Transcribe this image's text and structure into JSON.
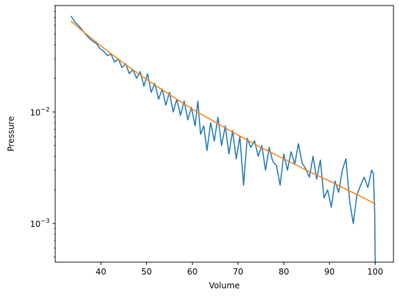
{
  "chart_data": {
    "type": "line",
    "title": "",
    "xlabel": "Volume",
    "ylabel": "Pressure",
    "xlim": [
      30,
      104
    ],
    "ylim": [
      0.00045,
      0.09
    ],
    "yscale": "log",
    "grid": false,
    "legend": "none",
    "x_ticks": [
      {
        "value": 40,
        "label": "40"
      },
      {
        "value": 50,
        "label": "50"
      },
      {
        "value": 60,
        "label": "60"
      },
      {
        "value": 70,
        "label": "70"
      },
      {
        "value": 80,
        "label": "80"
      },
      {
        "value": 90,
        "label": "90"
      },
      {
        "value": 100,
        "label": "100"
      }
    ],
    "y_ticks": [
      {
        "value": 0.001,
        "base": "10",
        "exp": "−3"
      },
      {
        "value": 0.01,
        "base": "10",
        "exp": "−2"
      }
    ],
    "series": [
      {
        "color": "#1f77b4",
        "x": [
          33.5,
          34.3,
          35.0,
          35.8,
          36.6,
          37.4,
          38.2,
          39.0,
          39.8,
          40.6,
          41.4,
          42.2,
          43.0,
          43.8,
          44.6,
          45.4,
          46.2,
          47.0,
          47.8,
          48.6,
          49.4,
          50.2,
          51.0,
          51.8,
          52.6,
          53.4,
          54.2,
          55.0,
          55.8,
          56.6,
          57.4,
          58.2,
          59.0,
          59.8,
          60.6,
          61.2,
          61.8,
          62.5,
          63.2,
          64.0,
          64.8,
          65.6,
          66.4,
          67.2,
          68.0,
          68.8,
          69.6,
          70.4,
          71.2,
          72.0,
          72.8,
          73.6,
          74.4,
          75.2,
          76.0,
          76.8,
          77.6,
          78.4,
          79.2,
          80.0,
          80.8,
          81.6,
          82.4,
          83.2,
          84.0,
          84.8,
          85.6,
          86.4,
          87.2,
          88.0,
          88.8,
          89.6,
          90.4,
          91.2,
          92.0,
          92.8,
          93.6,
          94.4,
          95.2,
          96.0,
          96.8,
          97.6,
          98.4,
          99.2,
          99.6,
          99.9,
          100.0
        ],
        "y": [
          0.072,
          0.064,
          0.06,
          0.055,
          0.05,
          0.046,
          0.043,
          0.041,
          0.037,
          0.035,
          0.032,
          0.033,
          0.028,
          0.03,
          0.025,
          0.027,
          0.022,
          0.024,
          0.02,
          0.023,
          0.017,
          0.022,
          0.015,
          0.018,
          0.013,
          0.016,
          0.0115,
          0.015,
          0.01,
          0.013,
          0.0093,
          0.0125,
          0.0085,
          0.011,
          0.0075,
          0.0125,
          0.0063,
          0.0075,
          0.0045,
          0.008,
          0.0055,
          0.009,
          0.005,
          0.0075,
          0.0042,
          0.0068,
          0.0038,
          0.006,
          0.0022,
          0.0058,
          0.0048,
          0.0055,
          0.004,
          0.005,
          0.003,
          0.0048,
          0.0036,
          0.0033,
          0.0022,
          0.0042,
          0.003,
          0.0044,
          0.0034,
          0.0052,
          0.0035,
          0.0031,
          0.0026,
          0.004,
          0.0025,
          0.0037,
          0.0017,
          0.002,
          0.0014,
          0.0024,
          0.0019,
          0.003,
          0.0038,
          0.0016,
          0.001,
          0.0018,
          0.0022,
          0.0026,
          0.0021,
          0.003,
          0.0028,
          0.0012,
          0.00045
        ]
      },
      {
        "color": "#ff7f0e",
        "x": [
          33.5,
          36,
          40,
          45,
          50,
          55,
          60,
          65,
          70,
          75,
          80,
          85,
          90,
          95,
          100
        ],
        "y": [
          0.065,
          0.053,
          0.039,
          0.0273,
          0.0195,
          0.0143,
          0.0106,
          0.0081,
          0.0062,
          0.0048,
          0.0038,
          0.003,
          0.0024,
          0.0019,
          0.0015
        ]
      }
    ]
  }
}
